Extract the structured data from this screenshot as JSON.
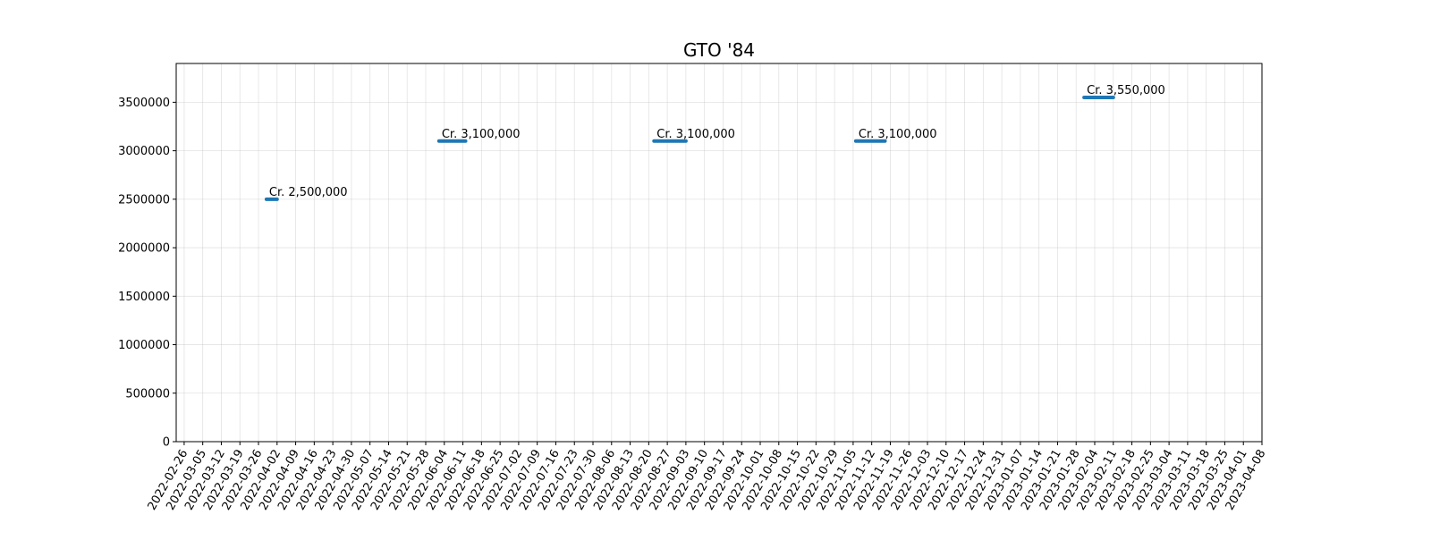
{
  "chart_data": {
    "type": "scatter",
    "title": "GTO '84",
    "xlabel": "",
    "ylabel": "",
    "x_axis_type": "date",
    "xlim": [
      "2022-02-23",
      "2023-04-08"
    ],
    "ylim": [
      0,
      3900000
    ],
    "grid": true,
    "series_color": "#1f77b4",
    "x_ticks": [
      "2022-02-26",
      "2022-03-05",
      "2022-03-12",
      "2022-03-19",
      "2022-03-26",
      "2022-04-02",
      "2022-04-09",
      "2022-04-16",
      "2022-04-23",
      "2022-04-30",
      "2022-05-07",
      "2022-05-14",
      "2022-05-21",
      "2022-05-28",
      "2022-06-04",
      "2022-06-11",
      "2022-06-18",
      "2022-06-25",
      "2022-07-02",
      "2022-07-09",
      "2022-07-16",
      "2022-07-23",
      "2022-07-30",
      "2022-08-06",
      "2022-08-13",
      "2022-08-20",
      "2022-08-27",
      "2022-09-03",
      "2022-09-10",
      "2022-09-17",
      "2022-09-24",
      "2022-10-01",
      "2022-10-08",
      "2022-10-15",
      "2022-10-22",
      "2022-10-29",
      "2022-11-05",
      "2022-11-12",
      "2022-11-19",
      "2022-11-26",
      "2022-12-03",
      "2022-12-10",
      "2022-12-17",
      "2022-12-24",
      "2022-12-31",
      "2023-01-07",
      "2023-01-14",
      "2023-01-21",
      "2023-01-28",
      "2023-02-04",
      "2023-02-11",
      "2023-02-18",
      "2023-02-25",
      "2023-03-04",
      "2023-03-11",
      "2023-03-18",
      "2023-03-25",
      "2023-04-01",
      "2023-04-08"
    ],
    "y_ticks": [
      0,
      500000,
      1000000,
      1500000,
      2000000,
      2500000,
      3000000,
      3500000
    ],
    "segments": [
      {
        "start": "2022-03-29",
        "end": "2022-04-02",
        "value": 2500000,
        "label": "Cr. 2,500,000"
      },
      {
        "start": "2022-06-02",
        "end": "2022-06-12",
        "value": 3100000,
        "label": "Cr. 3,100,000"
      },
      {
        "start": "2022-08-22",
        "end": "2022-09-03",
        "value": 3100000,
        "label": "Cr. 3,100,000"
      },
      {
        "start": "2022-11-06",
        "end": "2022-11-17",
        "value": 3100000,
        "label": "Cr. 3,100,000"
      },
      {
        "start": "2023-01-31",
        "end": "2023-02-11",
        "value": 3550000,
        "label": "Cr. 3,550,000"
      }
    ]
  }
}
